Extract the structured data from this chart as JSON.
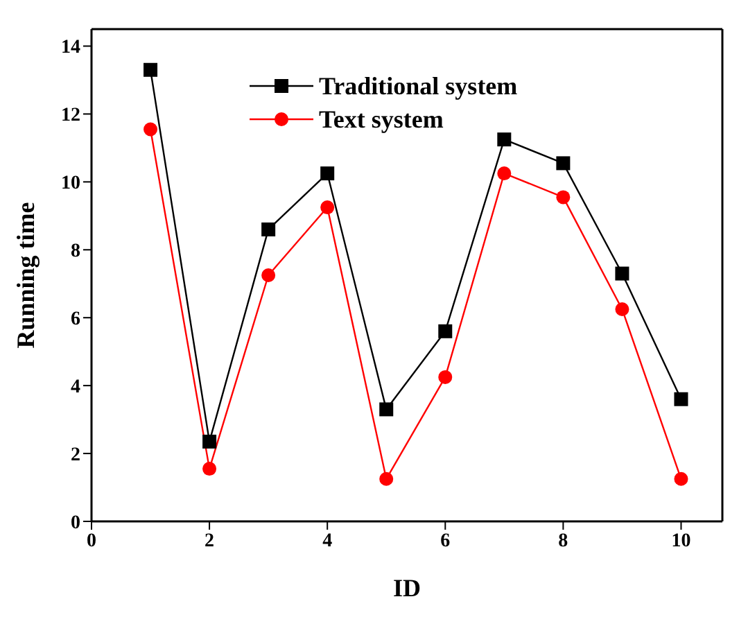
{
  "chart_data": {
    "type": "line",
    "xlabel": "ID",
    "ylabel": "Running time",
    "x": [
      1,
      2,
      3,
      4,
      5,
      6,
      7,
      8,
      9,
      10
    ],
    "series": [
      {
        "name": "Traditional system",
        "color": "#000000",
        "marker": "square",
        "values": [
          13.3,
          2.35,
          8.6,
          10.25,
          3.3,
          5.6,
          11.25,
          10.55,
          7.3,
          3.6
        ]
      },
      {
        "name": "Text system",
        "color": "#ff0000",
        "marker": "circle",
        "values": [
          11.55,
          1.55,
          7.25,
          9.25,
          1.25,
          4.25,
          10.25,
          9.55,
          6.25,
          1.25
        ]
      }
    ],
    "xlim": [
      0,
      10.7
    ],
    "xticks": [
      0,
      2,
      4,
      6,
      8,
      10
    ],
    "ylim": [
      0,
      14.5
    ],
    "yticks": [
      0,
      2,
      4,
      6,
      8,
      10,
      12,
      14
    ],
    "grid": false,
    "legend": "top"
  }
}
